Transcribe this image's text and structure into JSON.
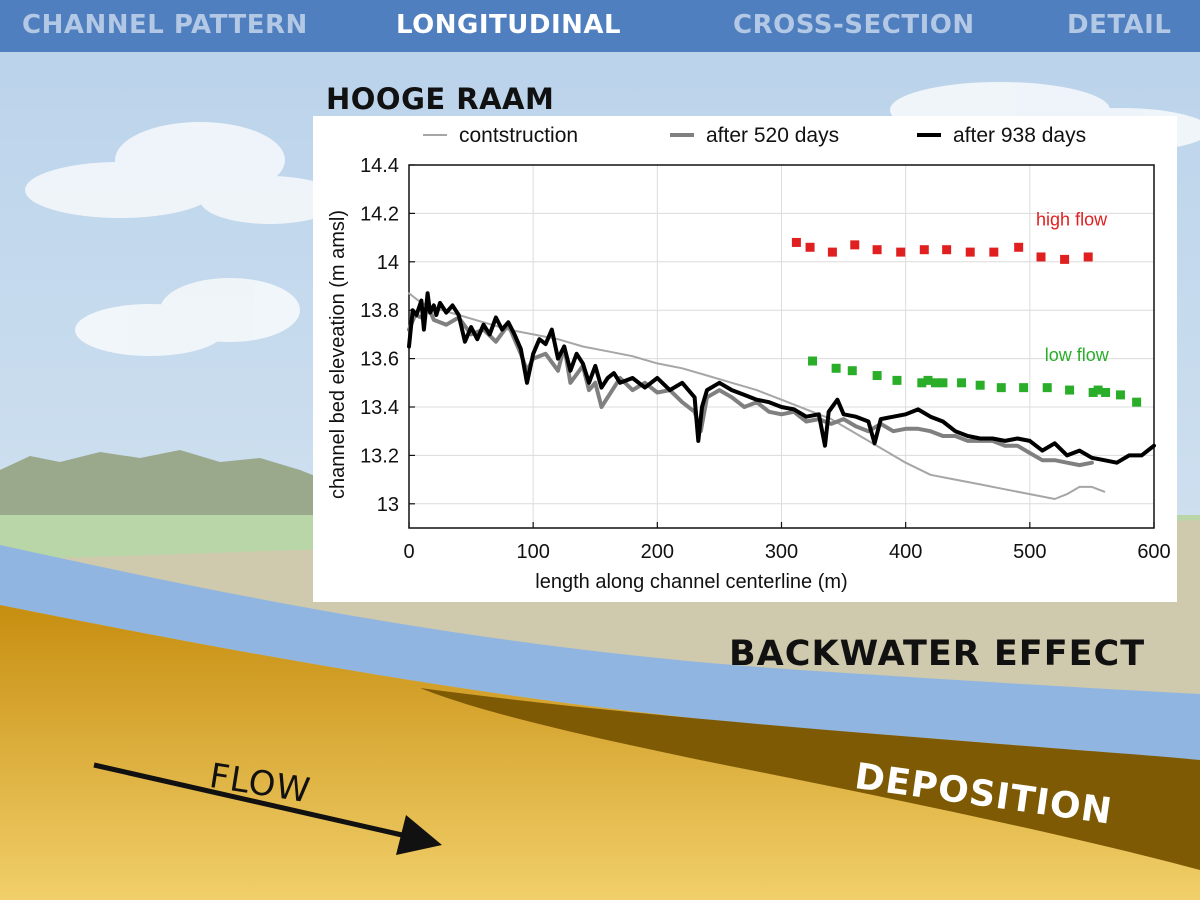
{
  "nav": {
    "tabs": [
      {
        "label": "CHANNEL PATTERN",
        "active": false
      },
      {
        "label": "LONGITUDINAL",
        "active": true
      },
      {
        "label": "CROSS-SECTION",
        "active": false
      },
      {
        "label": "DETAIL",
        "active": false
      }
    ]
  },
  "slide": {
    "title": "HOOGE RAAM",
    "labels": {
      "backwater": "BACKWATER EFFECT",
      "deposition": "DEPOSITION",
      "flow": "FLOW"
    }
  },
  "colors": {
    "nav_bg": "#4f7fbf",
    "sky": "#c9dced",
    "water": "#8fb5e0",
    "sediment": "#d29a16",
    "deposition": "#7f5a05",
    "high_flow": "#e02020",
    "low_flow": "#2aae2a"
  },
  "chart_data": {
    "type": "line",
    "title": "HOOGE RAAM",
    "xlabel": "length along channel centerline (m)",
    "ylabel": "channel bed eleveation (m amsl)",
    "xlim": [
      0,
      600
    ],
    "ylim": [
      12.9,
      14.4
    ],
    "xticks": [
      0,
      100,
      200,
      300,
      400,
      500,
      600
    ],
    "yticks": [
      13,
      13.2,
      13.4,
      13.6,
      13.8,
      14,
      14.2,
      14.4
    ],
    "ytick_labels": [
      "13",
      "13.2",
      "13.4",
      "13.6",
      "13.8",
      "14",
      "14.2",
      "14.4"
    ],
    "grid": true,
    "legend_position": "top",
    "series": [
      {
        "name": "contstruction",
        "color": "#a6a6a6",
        "width": 2,
        "x": [
          0,
          10,
          20,
          40,
          60,
          80,
          100,
          120,
          140,
          160,
          180,
          200,
          220,
          240,
          260,
          280,
          300,
          320,
          340,
          360,
          380,
          400,
          420,
          440,
          460,
          480,
          500,
          520,
          530,
          540,
          550,
          560
        ],
        "y": [
          13.87,
          13.83,
          13.81,
          13.78,
          13.75,
          13.72,
          13.7,
          13.68,
          13.65,
          13.63,
          13.61,
          13.58,
          13.56,
          13.53,
          13.5,
          13.47,
          13.43,
          13.39,
          13.35,
          13.29,
          13.23,
          13.17,
          13.12,
          13.1,
          13.08,
          13.06,
          13.04,
          13.02,
          13.04,
          13.07,
          13.07,
          13.05
        ]
      },
      {
        "name": "after 520 days",
        "color": "#808080",
        "width": 4,
        "x": [
          0,
          5,
          10,
          15,
          20,
          30,
          40,
          50,
          60,
          70,
          80,
          90,
          95,
          100,
          110,
          120,
          125,
          130,
          140,
          145,
          150,
          155,
          160,
          170,
          180,
          190,
          200,
          210,
          220,
          230,
          235,
          240,
          250,
          260,
          270,
          280,
          290,
          300,
          310,
          320,
          330,
          340,
          350,
          360,
          370,
          380,
          390,
          400,
          410,
          420,
          430,
          440,
          450,
          460,
          470,
          480,
          490,
          500,
          510,
          520,
          530,
          540,
          550
        ],
        "y": [
          13.72,
          13.78,
          13.77,
          13.82,
          13.76,
          13.74,
          13.77,
          13.7,
          13.72,
          13.67,
          13.74,
          13.62,
          13.55,
          13.6,
          13.62,
          13.55,
          13.65,
          13.5,
          13.57,
          13.47,
          13.5,
          13.4,
          13.44,
          13.52,
          13.47,
          13.5,
          13.46,
          13.47,
          13.42,
          13.38,
          13.3,
          13.44,
          13.47,
          13.44,
          13.4,
          13.42,
          13.38,
          13.37,
          13.38,
          13.34,
          13.35,
          13.33,
          13.35,
          13.32,
          13.3,
          13.33,
          13.3,
          13.31,
          13.31,
          13.3,
          13.28,
          13.28,
          13.26,
          13.26,
          13.26,
          13.24,
          13.24,
          13.21,
          13.18,
          13.18,
          13.17,
          13.16,
          13.17
        ]
      },
      {
        "name": "after 938 days",
        "color": "#000000",
        "width": 4,
        "x": [
          0,
          3,
          6,
          10,
          12,
          15,
          17,
          20,
          22,
          25,
          30,
          35,
          40,
          45,
          50,
          55,
          60,
          65,
          70,
          75,
          80,
          85,
          90,
          95,
          100,
          105,
          110,
          115,
          120,
          125,
          130,
          135,
          140,
          145,
          150,
          155,
          160,
          165,
          170,
          180,
          190,
          200,
          210,
          220,
          230,
          233,
          236,
          240,
          250,
          260,
          270,
          280,
          290,
          300,
          310,
          320,
          330,
          335,
          338,
          345,
          350,
          360,
          370,
          375,
          380,
          390,
          400,
          410,
          420,
          430,
          440,
          450,
          460,
          470,
          480,
          490,
          500,
          510,
          520,
          530,
          540,
          550,
          560,
          570,
          580,
          590,
          600
        ],
        "y": [
          13.65,
          13.8,
          13.78,
          13.84,
          13.72,
          13.87,
          13.79,
          13.82,
          13.78,
          13.83,
          13.79,
          13.82,
          13.78,
          13.67,
          13.73,
          13.68,
          13.74,
          13.7,
          13.77,
          13.72,
          13.75,
          13.7,
          13.64,
          13.5,
          13.62,
          13.68,
          13.66,
          13.72,
          13.6,
          13.65,
          13.55,
          13.62,
          13.58,
          13.5,
          13.57,
          13.48,
          13.52,
          13.54,
          13.5,
          13.52,
          13.48,
          13.52,
          13.47,
          13.5,
          13.44,
          13.26,
          13.4,
          13.47,
          13.5,
          13.47,
          13.45,
          13.43,
          13.42,
          13.4,
          13.39,
          13.36,
          13.37,
          13.24,
          13.38,
          13.43,
          13.37,
          13.36,
          13.34,
          13.25,
          13.35,
          13.36,
          13.37,
          13.39,
          13.36,
          13.34,
          13.3,
          13.28,
          13.27,
          13.27,
          13.26,
          13.27,
          13.26,
          13.22,
          13.25,
          13.2,
          13.22,
          13.19,
          13.18,
          13.17,
          13.2,
          13.2,
          13.24
        ]
      }
    ],
    "scatter_series": [
      {
        "color": "#e02020",
        "x": [
          312,
          323,
          341,
          359,
          377,
          396,
          415,
          433,
          452,
          471,
          491,
          509,
          528,
          547
        ],
        "y": [
          14.08,
          14.06,
          14.04,
          14.07,
          14.05,
          14.04,
          14.05,
          14.05,
          14.04,
          14.04,
          14.06,
          14.02,
          14.01,
          14.02
        ]
      },
      {
        "color": "#2aae2a",
        "x": [
          325,
          344,
          357,
          377,
          393,
          413,
          418,
          424,
          430,
          445,
          460,
          477,
          495,
          514,
          532,
          551,
          555,
          561,
          573,
          586
        ],
        "y": [
          13.59,
          13.56,
          13.55,
          13.53,
          13.51,
          13.5,
          13.51,
          13.5,
          13.5,
          13.5,
          13.49,
          13.48,
          13.48,
          13.48,
          13.47,
          13.46,
          13.47,
          13.46,
          13.45,
          13.42
        ]
      }
    ],
    "annotations": [
      {
        "text": "high flow",
        "x": 505,
        "y": 14.15,
        "color": "#e02020"
      },
      {
        "text": "low flow",
        "x": 512,
        "y": 13.59,
        "color": "#2aae2a"
      }
    ]
  }
}
